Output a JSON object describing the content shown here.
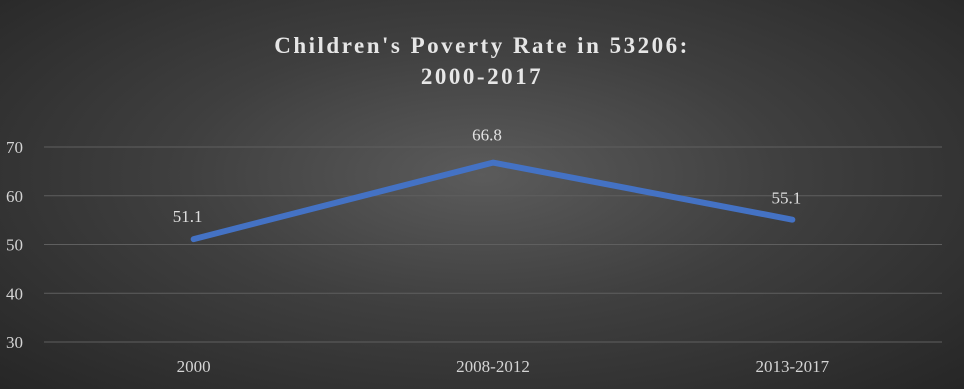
{
  "chart_data": {
    "type": "line",
    "title_lines": [
      "Children's Poverty Rate in 53206:",
      "2000-2017"
    ],
    "categories": [
      "2000",
      "2008-2012",
      "2013-2017"
    ],
    "series": [
      {
        "values": [
          51.1,
          66.8,
          55.1
        ]
      }
    ],
    "data_labels": [
      "51.1",
      "66.8",
      "55.1"
    ],
    "y_ticks": [
      30,
      40,
      50,
      60,
      70
    ],
    "ylim": [
      30,
      70
    ],
    "grid": true,
    "legend": "none",
    "colors": {
      "line": "#4472C4",
      "grid": "#5f5f5f",
      "background_center": "#5b5b5b",
      "background_edge": "#262626",
      "text": "#d9d9d9"
    }
  }
}
